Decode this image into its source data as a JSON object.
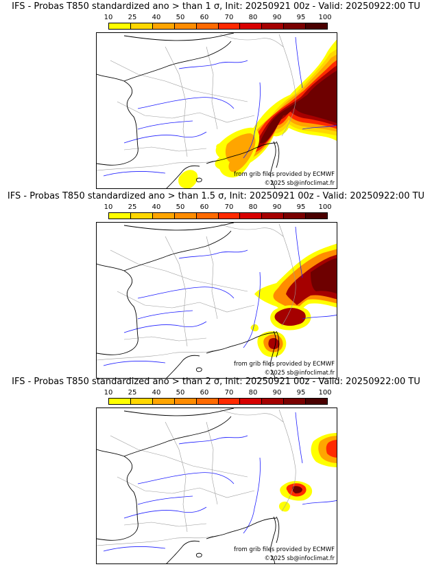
{
  "palette": [
    "#ffff00",
    "#ffd700",
    "#ffa500",
    "#ff8c00",
    "#ff6a00",
    "#ff2a00",
    "#d70000",
    "#a50000",
    "#7a0000",
    "#4a0000"
  ],
  "colors": {
    "coast": "#000000",
    "rivers": "#1a1aff",
    "borders": "#9a9a9a"
  },
  "scale_labels": [
    "10",
    "25",
    "40",
    "50",
    "60",
    "70",
    "80",
    "90",
    "95",
    "100"
  ],
  "panels": [
    {
      "title": "IFS - Probas T850  standardized ano > than 1 σ, Init: 20250921 00z - Valid: 20250922:00 TU",
      "threshold": "1 σ",
      "source_credit": "from grib files provided by ECMWF",
      "copyright": "©2025 sb@infoclimat.fr"
    },
    {
      "title": "IFS - Probas T850  standardized ano > than 1.5 σ, Init: 20250921 00z - Valid: 20250922:00 TU",
      "threshold": "1.5 σ",
      "source_credit": "from grib files provided by ECMWF",
      "copyright": "©2025 sb@infoclimat.fr"
    },
    {
      "title": "IFS - Probas T850  standardized ano > than 2 σ, Init: 20250921 00z - Valid: 20250922:00 TU",
      "threshold": "2 σ",
      "source_credit": "from grib files provided by ECMWF",
      "copyright": "©2025 sb@infoclimat.fr"
    }
  ]
}
